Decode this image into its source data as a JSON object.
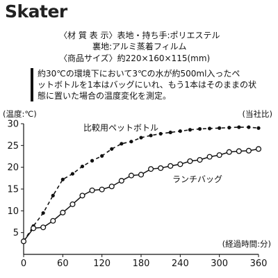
{
  "brand": {
    "name": "Skater"
  },
  "spec": {
    "line1": "〈材 質 表 示〉表地・持ち手:ポリエステル",
    "line2": "裏地:アルミ蒸着フィルム",
    "line3": "〈商品サイズ〉約220×160×115(mm)"
  },
  "note": {
    "line1": "約30℃の環境下において3℃の水が約500ml入ったペ",
    "line2": "ットボトルを1本はバッグにいれ、もう1本はそのままの状",
    "line3": "態に置いた場合の温度変化を測定。"
  },
  "colors": {
    "line": "#111111",
    "background": "#ffffff"
  },
  "chart_data": {
    "type": "line",
    "ylabel": "(温度:℃)",
    "right_label": "(当社比)",
    "xlabel": "(経過時間:分)",
    "xlim": [
      0,
      360
    ],
    "ylim": [
      0,
      30
    ],
    "xticks": [
      0,
      60,
      120,
      180,
      240,
      300,
      360
    ],
    "yticks": [
      0,
      5,
      10,
      15,
      20,
      25,
      30
    ],
    "grid": false,
    "series": [
      {
        "name": "比較用ペットボトル",
        "style": "dashed",
        "marker": "filled-circle",
        "x": [
          0,
          15,
          30,
          45,
          60,
          75,
          90,
          105,
          120,
          135,
          150,
          165,
          180,
          195,
          210,
          225,
          240,
          255,
          270,
          285,
          300,
          315,
          330,
          345,
          360
        ],
        "y": [
          3,
          6.5,
          9.5,
          13.5,
          17.2,
          18.5,
          20.2,
          21.5,
          22.6,
          24.2,
          25.4,
          25.9,
          26.8,
          27.3,
          27.7,
          28.0,
          28.3,
          28.6,
          28.8,
          28.9,
          29.0,
          29.1,
          29.2,
          29.2,
          29.0
        ]
      },
      {
        "name": "ランチバッグ",
        "style": "solid",
        "marker": "open-circle",
        "x": [
          0,
          15,
          30,
          45,
          60,
          75,
          90,
          105,
          120,
          135,
          150,
          165,
          180,
          195,
          210,
          225,
          240,
          255,
          270,
          285,
          300,
          315,
          330,
          345,
          360
        ],
        "y": [
          3,
          6,
          6.2,
          7.7,
          9.6,
          11.5,
          13.5,
          14.7,
          14.9,
          15.6,
          16.9,
          18.1,
          18.3,
          19.6,
          19.8,
          20.3,
          20.7,
          21.4,
          21.7,
          22.4,
          22.8,
          23.5,
          23.7,
          23.8,
          24.2
        ]
      }
    ]
  }
}
